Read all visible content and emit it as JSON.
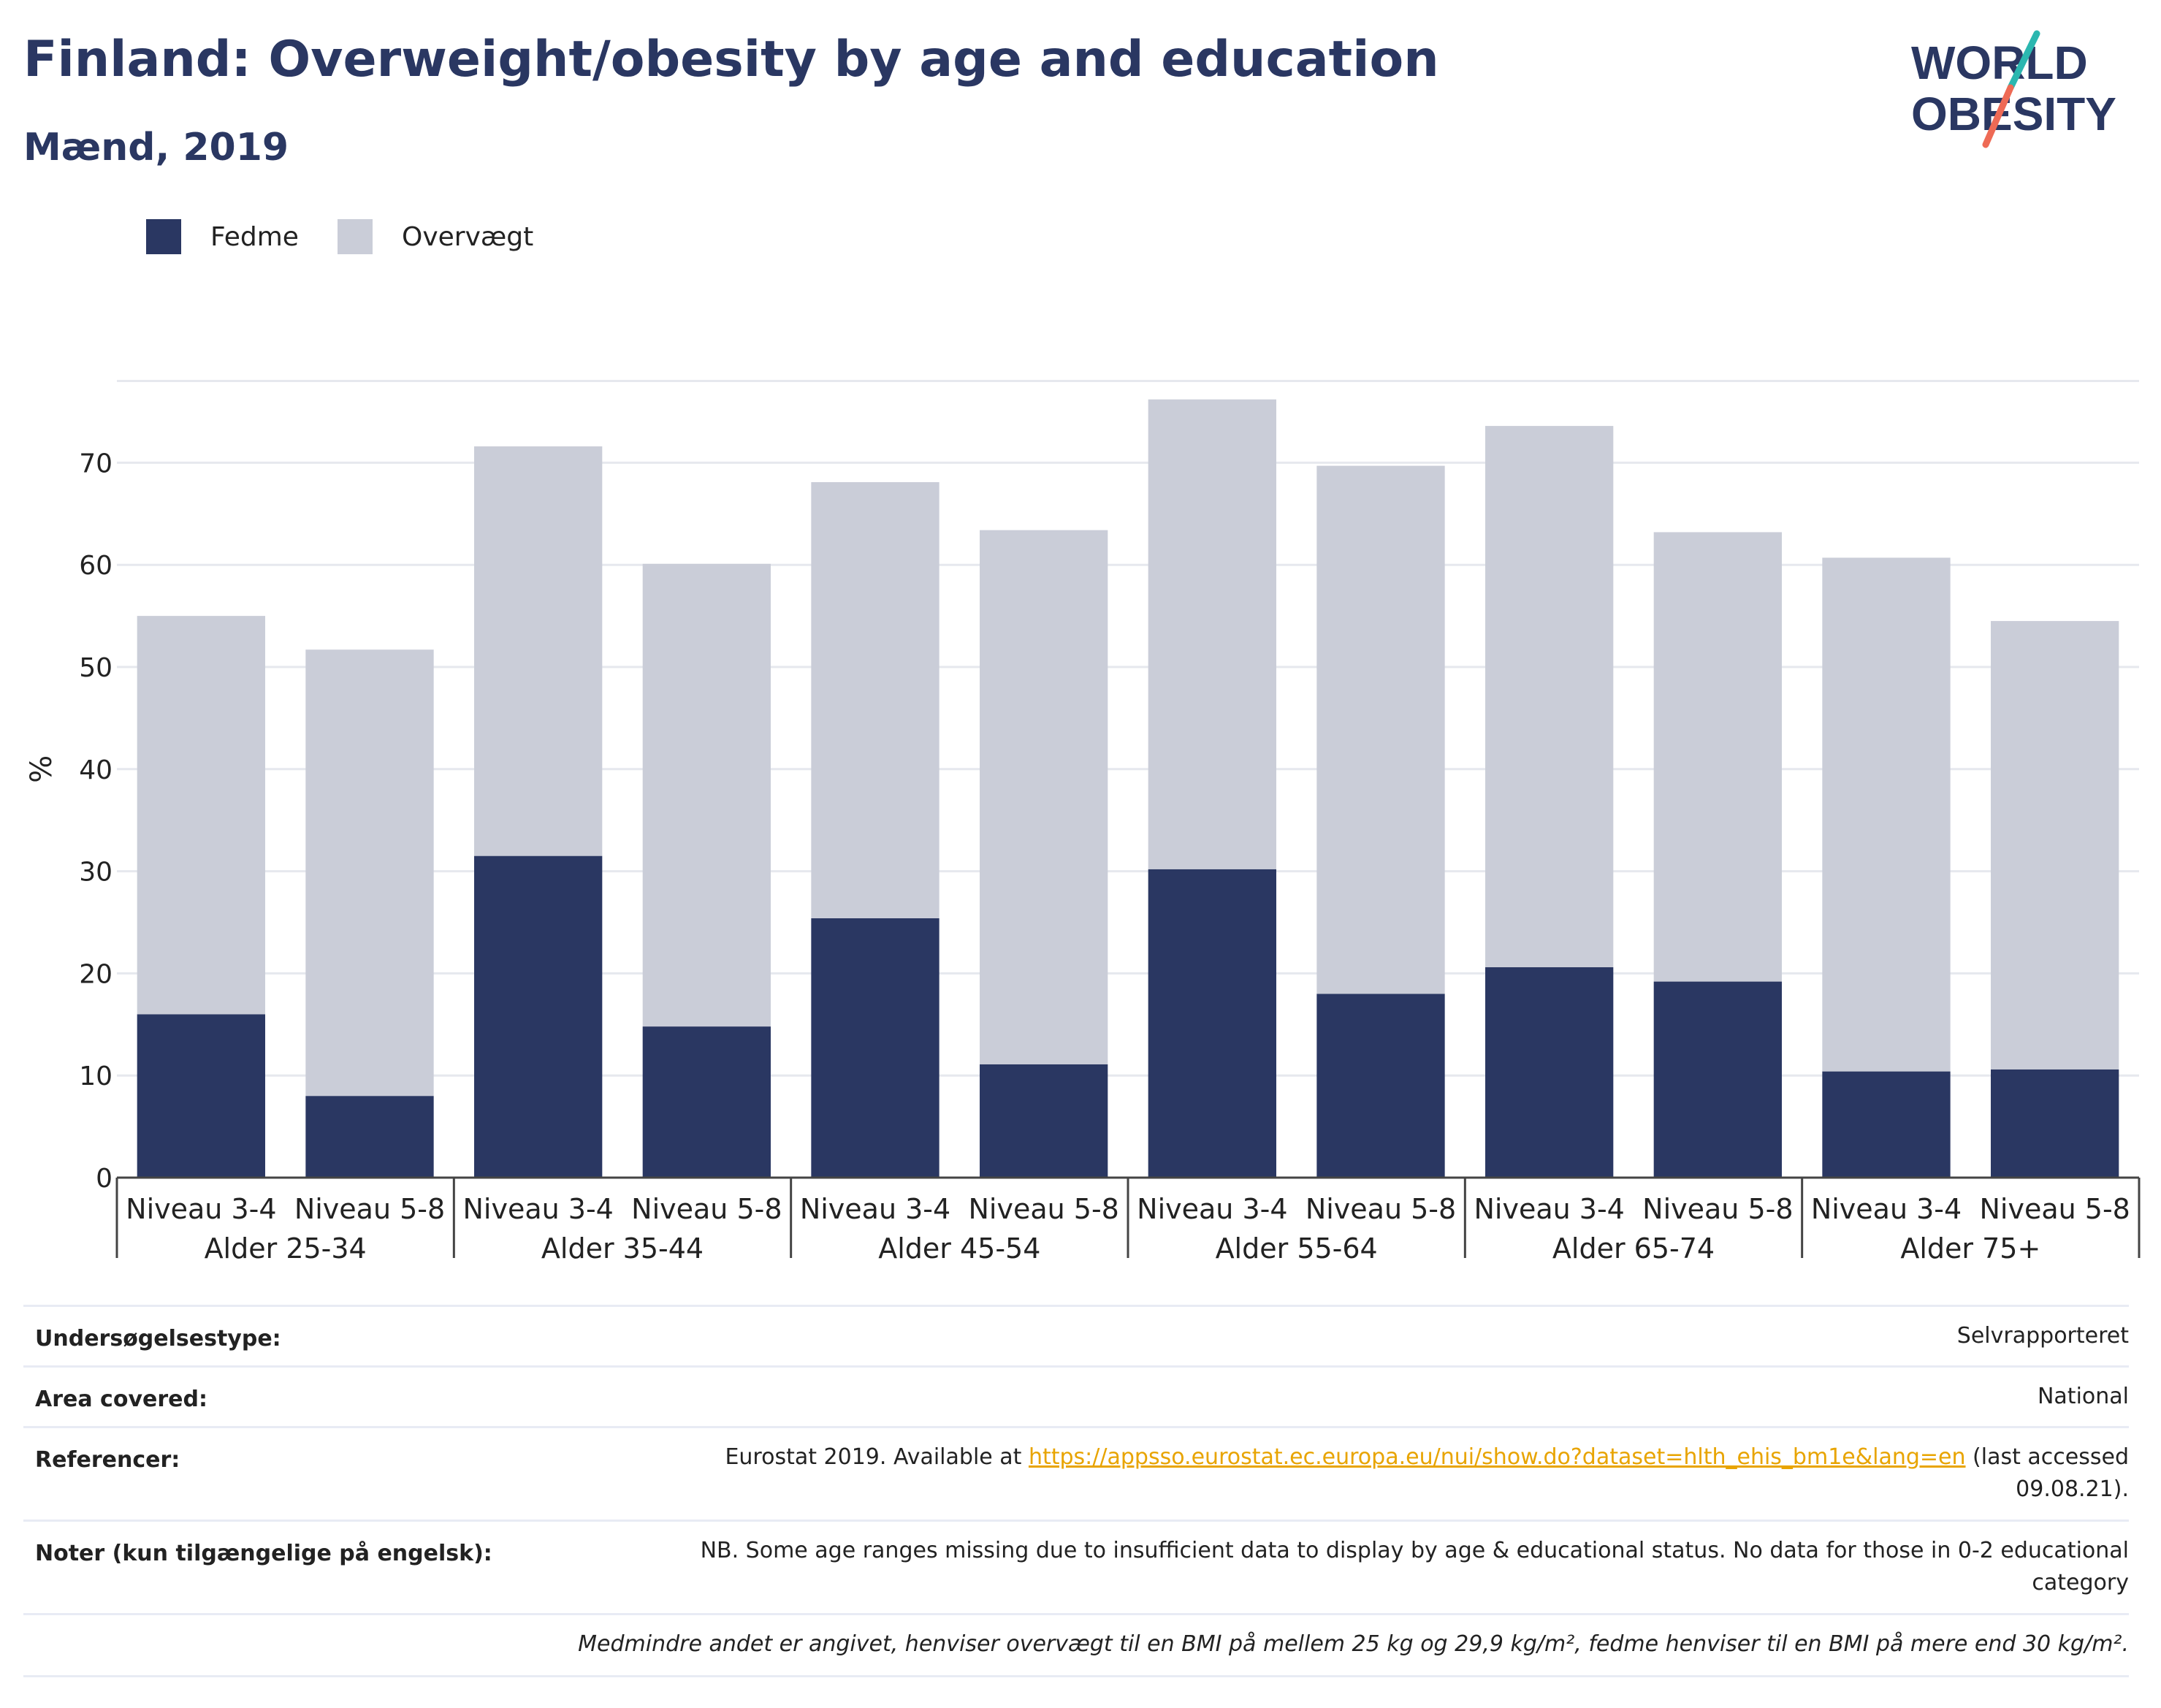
{
  "title": "Finland: Overweight/obesity by age and education",
  "subtitle": "Mænd, 2019",
  "logo": {
    "line1": "WORLD",
    "line2": "OBESITY"
  },
  "legend": [
    {
      "label": "Fedme",
      "color": "#2a3762"
    },
    {
      "label": "Overvægt",
      "color": "#cacdd8"
    }
  ],
  "chart_data": {
    "type": "bar",
    "stacked": true,
    "ylabel": "%",
    "ylim": [
      0,
      80
    ],
    "yticks": [
      0,
      10,
      20,
      30,
      40,
      50,
      60,
      70
    ],
    "grid": true,
    "legend_position": "top-left",
    "categories": [
      "Niveau 3-4",
      "Niveau 5-8",
      "Niveau 3-4",
      "Niveau 5-8",
      "Niveau 3-4",
      "Niveau 5-8",
      "Niveau 3-4",
      "Niveau 5-8",
      "Niveau 3-4",
      "Niveau 5-8",
      "Niveau 3-4",
      "Niveau 5-8"
    ],
    "groups": [
      "Alder 25-34",
      "Alder 35-44",
      "Alder 45-54",
      "Alder 55-64",
      "Alder 65-74",
      "Alder 75+"
    ],
    "series": [
      {
        "name": "Fedme",
        "color": "#2a3762",
        "values": [
          16.0,
          8.0,
          31.5,
          14.8,
          25.4,
          11.1,
          30.2,
          18.0,
          20.6,
          19.2,
          10.4,
          10.6
        ]
      },
      {
        "name": "Overvægt",
        "color": "#cacdd8",
        "values": [
          39.0,
          43.7,
          40.1,
          45.3,
          42.7,
          52.3,
          46.0,
          51.7,
          53.0,
          44.0,
          50.3,
          43.9
        ]
      }
    ]
  },
  "meta": {
    "survey_label": "Undersøgelsestype:",
    "survey_value": "Selvrapporteret",
    "area_label": "Area covered:",
    "area_value": "National",
    "ref_label": "Referencer:",
    "ref_prefix": "Eurostat 2019. Available at ",
    "ref_link": "https://appsso.eurostat.ec.europa.eu/nui/show.do?dataset=hlth_ehis_bm1e&lang=en",
    "ref_suffix": " (last accessed",
    "ref_date": "09.08.21).",
    "notes_label": "Noter (kun tilgængelige på engelsk):",
    "notes_line1": "NB. Some age ranges missing due to insufficient data to display by age & educational status. No data for those in 0-2 educational",
    "notes_line2": "category",
    "footnote": "Medmindre andet er angivet, henviser overvægt til en BMI på mellem 25 kg og 29,9 kg/m², fedme henviser til en BMI på mere end 30 kg/m²."
  }
}
